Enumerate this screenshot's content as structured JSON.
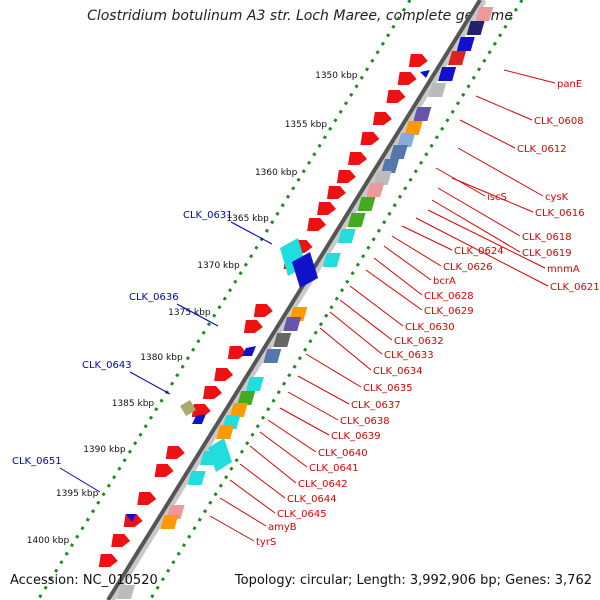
{
  "title": "Clostridium botulinum A3 str. Loch Maree, complete genome",
  "footer": {
    "accession": "Accession: NC_010520",
    "topology": "Topology: circular; Length: 3,992,906 bp; Genes: 3,762"
  },
  "colors": {
    "backbone": "#555555",
    "ticks_track": "#1f8a1f",
    "gene_forward": "#ee1111",
    "label_red": "#dd0000",
    "label_blue": "#0000bb",
    "cyan": "#22dddd",
    "blue": "#1111cc",
    "navy": "#22226a",
    "orange": "#ff9900",
    "olive": "#aaaa66",
    "green": "#44aa22",
    "gray": "#999999",
    "pink": "#ee8888",
    "purple": "#6655aa",
    "steel": "#5577aa"
  },
  "ticks": [
    {
      "label": "1350 kbp",
      "kbp": 1350
    },
    {
      "label": "1355 kbp",
      "kbp": 1355
    },
    {
      "label": "1360 kbp",
      "kbp": 1360
    },
    {
      "label": "1365 kbp",
      "kbp": 1365
    },
    {
      "label": "1370 kbp",
      "kbp": 1370
    },
    {
      "label": "1375 kbp",
      "kbp": 1375
    },
    {
      "label": "1380 kbp",
      "kbp": 1380
    },
    {
      "label": "1385 kbp",
      "kbp": 1385
    },
    {
      "label": "1390 kbp",
      "kbp": 1390
    },
    {
      "label": "1395 kbp",
      "kbp": 1395
    },
    {
      "label": "1400 kbp",
      "kbp": 1400
    }
  ],
  "right_labels": [
    "panE",
    "CLK_0608",
    "CLK_0612",
    "cysK",
    "iscS",
    "CLK_0616",
    "CLK_0618",
    "CLK_0619",
    "mnmA",
    "CLK_0621",
    "CLK_0624",
    "CLK_0626",
    "bcrA",
    "CLK_0628",
    "CLK_0629",
    "CLK_0630",
    "CLK_0632",
    "CLK_0633",
    "CLK_0634",
    "CLK_0635",
    "CLK_0637",
    "CLK_0638",
    "CLK_0639",
    "CLK_0640",
    "CLK_0641",
    "CLK_0642",
    "CLK_0644",
    "CLK_0645",
    "amyB",
    "tyrS"
  ],
  "left_labels": [
    "CLK_0631",
    "CLK_0636",
    "CLK_0643",
    "CLK_0651"
  ]
}
